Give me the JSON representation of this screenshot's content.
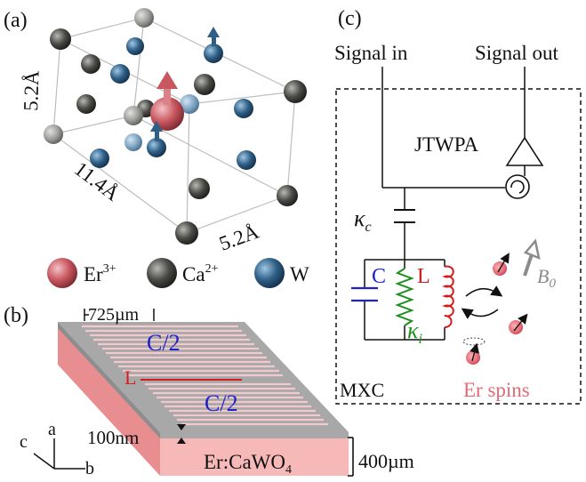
{
  "panel_a": {
    "label": "(a)",
    "dim_vertical": "5.2Å",
    "dim_long": "11.4Å",
    "dim_short": "5.2Å",
    "legend": [
      {
        "text": "Er",
        "sup": "3+",
        "color": "#c95760"
      },
      {
        "text": "Ca",
        "sup": "2+",
        "color": "#4a4a46"
      },
      {
        "text": "W",
        "sup": "",
        "color": "#2f5f86"
      }
    ]
  },
  "panel_b": {
    "label": "(b)",
    "width_label": "725µm",
    "cap_top": "C/2",
    "cap_bottom": "C/2",
    "inductor": "L",
    "film_thickness": "100nm",
    "substrate": "Er:CaWO",
    "substrate_sub": "4",
    "substrate_thickness": "400µm",
    "axes": {
      "a": "a",
      "b": "b",
      "c": "c"
    }
  },
  "panel_c": {
    "label": "(c)",
    "signal_in": "Signal in",
    "signal_out": "Signal out",
    "amplifier": "JTWPA",
    "coupling": "κ",
    "coupling_sub": "c",
    "capacitor": "C",
    "inductor": "L",
    "internal_loss": "κ",
    "internal_loss_sub": "i",
    "field": "B",
    "field_sub": "0",
    "stage": "MXC",
    "spins": "Er spins"
  },
  "colors": {
    "er": "#c95760",
    "ca": "#4a4a46",
    "w": "#2f5f86",
    "cap_blue": "#1f22c8",
    "ind_red": "#d01e1e",
    "loss_green": "#1d8f1d",
    "spin_pink": "#e56a74",
    "substrate": "#f7b8b8",
    "film": "#a8a8a8"
  }
}
